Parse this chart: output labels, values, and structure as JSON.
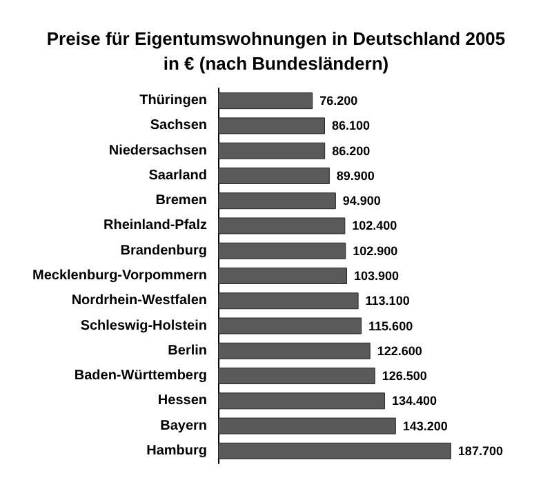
{
  "chart_data": {
    "type": "bar",
    "orientation": "horizontal",
    "title": "Preise für Eigentumswohnungen in Deutschland 2005\nin € (nach Bundesländern)",
    "categories": [
      "Thüringen",
      "Sachsen",
      "Niedersachsen",
      "Saarland",
      "Bremen",
      "Rheinland-Pfalz",
      "Brandenburg",
      "Mecklenburg-Vorpommern",
      "Nordrhein-Westfalen",
      "Schleswig-Holstein",
      "Berlin",
      "Baden-Württemberg",
      "Hessen",
      "Bayern",
      "Hamburg"
    ],
    "values": [
      76200,
      86100,
      86200,
      89900,
      94900,
      102400,
      102900,
      103900,
      113100,
      115600,
      122600,
      126500,
      134400,
      143200,
      187700
    ],
    "value_labels": [
      "76.200",
      "86.100",
      "86.200",
      "89.900",
      "94.900",
      "102.400",
      "102.900",
      "103.900",
      "113.100",
      "115.600",
      "122.600",
      "126.500",
      "134.400",
      "143.200",
      "187.700"
    ],
    "color": "#5a5a5a"
  }
}
